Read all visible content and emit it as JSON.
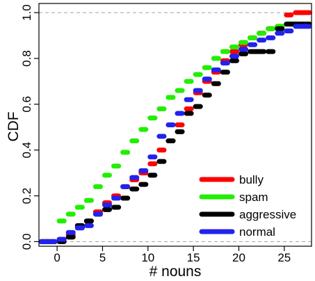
{
  "chart_data": {
    "type": "line",
    "title": "",
    "xlabel": "# nouns",
    "ylabel": "CDF",
    "xlim": [
      -2,
      28
    ],
    "ylim": [
      -0.02,
      1.04
    ],
    "xticks": [
      0,
      5,
      10,
      15,
      20,
      25
    ],
    "xtick_labels": [
      "0",
      "5",
      "10",
      "15",
      "20",
      "25"
    ],
    "yticks": [
      0.0,
      0.2,
      0.4,
      0.6,
      0.8,
      1.0
    ],
    "ytick_labels": [
      "0.0",
      "0.2",
      "0.4",
      "0.6",
      "0.8",
      "1.0"
    ],
    "reference_lines_y": [
      0,
      1
    ],
    "grid": false,
    "legend_position": "bottom-right",
    "series": [
      {
        "name": "bully",
        "color": "#ff0000",
        "steps": [
          [
            -2,
            0
          ],
          [
            0,
            0.01
          ],
          [
            1,
            0.03
          ],
          [
            2,
            0.06
          ],
          [
            3,
            0.09
          ],
          [
            4,
            0.13
          ],
          [
            5,
            0.17
          ],
          [
            6,
            0.2
          ],
          [
            7,
            0.24
          ],
          [
            8,
            0.27
          ],
          [
            9,
            0.3
          ],
          [
            10,
            0.34
          ],
          [
            11,
            0.4
          ],
          [
            12,
            0.44
          ],
          [
            13,
            0.51
          ],
          [
            14,
            0.58
          ],
          [
            15,
            0.65
          ],
          [
            16,
            0.7
          ],
          [
            17,
            0.74
          ],
          [
            18,
            0.79
          ],
          [
            19,
            0.83
          ],
          [
            20,
            0.86
          ],
          [
            21,
            0.89
          ],
          [
            22,
            0.91
          ],
          [
            23,
            0.93
          ],
          [
            24,
            0.94
          ],
          [
            25,
            0.99
          ],
          [
            26,
            1.0
          ],
          [
            28,
            1.0
          ]
        ]
      },
      {
        "name": "spam",
        "color": "#22ee00",
        "steps": [
          [
            -2,
            0
          ],
          [
            0,
            0.09
          ],
          [
            1,
            0.12
          ],
          [
            2,
            0.15
          ],
          [
            3,
            0.18
          ],
          [
            4,
            0.24
          ],
          [
            5,
            0.29
          ],
          [
            6,
            0.33
          ],
          [
            7,
            0.39
          ],
          [
            8,
            0.44
          ],
          [
            9,
            0.49
          ],
          [
            10,
            0.54
          ],
          [
            11,
            0.58
          ],
          [
            12,
            0.63
          ],
          [
            13,
            0.66
          ],
          [
            14,
            0.7
          ],
          [
            15,
            0.73
          ],
          [
            16,
            0.76
          ],
          [
            17,
            0.8
          ],
          [
            18,
            0.83
          ],
          [
            19,
            0.85
          ],
          [
            20,
            0.87
          ],
          [
            21,
            0.89
          ],
          [
            22,
            0.91
          ],
          [
            23,
            0.93
          ],
          [
            24,
            0.94
          ],
          [
            25,
            0.95
          ],
          [
            28,
            0.95
          ]
        ]
      },
      {
        "name": "aggressive",
        "color": "#000000",
        "steps": [
          [
            -2,
            0
          ],
          [
            0,
            0.0
          ],
          [
            1,
            0.02
          ],
          [
            2,
            0.07
          ],
          [
            3,
            0.09
          ],
          [
            4,
            0.12
          ],
          [
            5,
            0.14
          ],
          [
            6,
            0.15
          ],
          [
            7,
            0.19
          ],
          [
            8,
            0.23
          ],
          [
            9,
            0.25
          ],
          [
            10,
            0.29
          ],
          [
            11,
            0.35
          ],
          [
            12,
            0.44
          ],
          [
            13,
            0.48
          ],
          [
            14,
            0.56
          ],
          [
            15,
            0.59
          ],
          [
            16,
            0.64
          ],
          [
            17,
            0.69
          ],
          [
            18,
            0.74
          ],
          [
            19,
            0.79
          ],
          [
            20,
            0.82
          ],
          [
            21,
            0.83
          ],
          [
            23,
            0.83
          ],
          [
            24,
            0.93
          ],
          [
            25,
            0.95
          ],
          [
            28,
            0.95
          ]
        ]
      },
      {
        "name": "normal",
        "color": "#2222ee",
        "steps": [
          [
            -2,
            0
          ],
          [
            0,
            0.01
          ],
          [
            1,
            0.04
          ],
          [
            2,
            0.06
          ],
          [
            3,
            0.07
          ],
          [
            4,
            0.12
          ],
          [
            5,
            0.16
          ],
          [
            6,
            0.19
          ],
          [
            7,
            0.24
          ],
          [
            8,
            0.28
          ],
          [
            9,
            0.31
          ],
          [
            10,
            0.37
          ],
          [
            11,
            0.46
          ],
          [
            12,
            0.51
          ],
          [
            13,
            0.56
          ],
          [
            14,
            0.62
          ],
          [
            15,
            0.66
          ],
          [
            16,
            0.71
          ],
          [
            17,
            0.75
          ],
          [
            18,
            0.78
          ],
          [
            19,
            0.81
          ],
          [
            20,
            0.84
          ],
          [
            21,
            0.86
          ],
          [
            22,
            0.88
          ],
          [
            23,
            0.89
          ],
          [
            24,
            0.91
          ],
          [
            25,
            0.92
          ],
          [
            26,
            0.94
          ],
          [
            28,
            0.94
          ]
        ]
      }
    ]
  }
}
